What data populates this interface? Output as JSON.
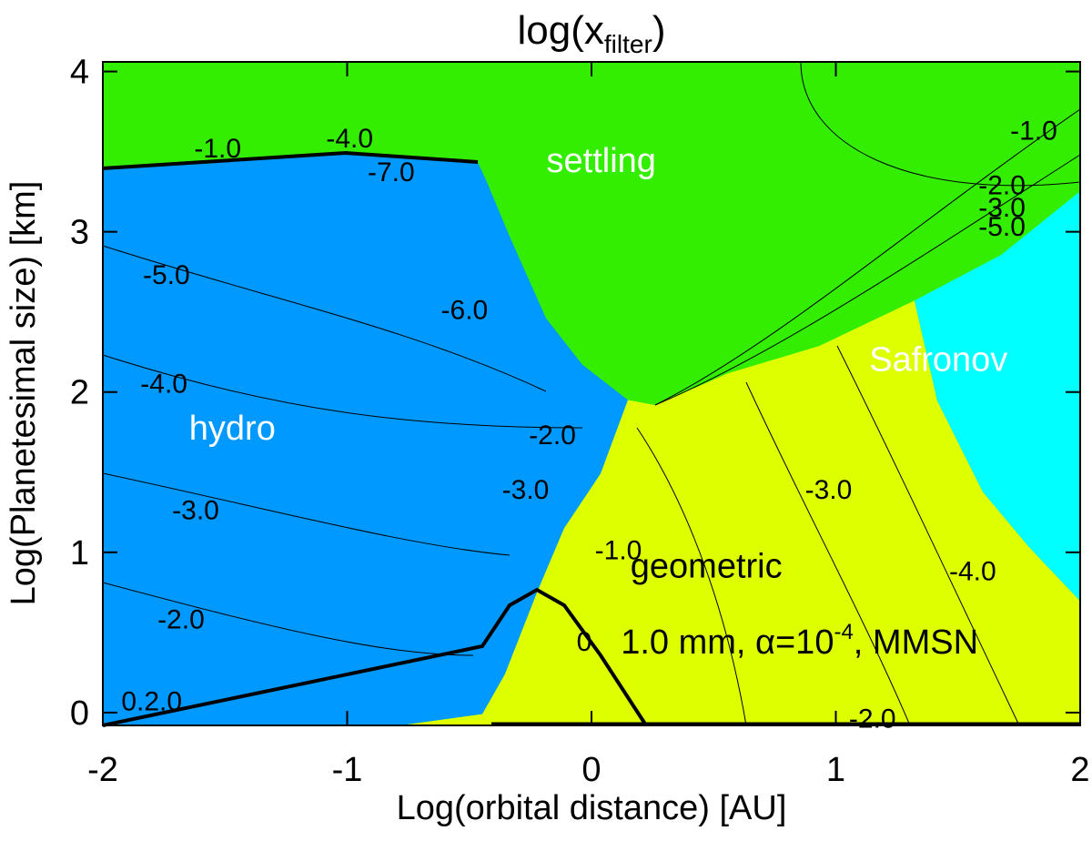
{
  "chart_data": {
    "type": "contour",
    "title": [
      "log(x",
      "filter",
      ")"
    ],
    "x_label": "Log(orbital distance) [AU]",
    "y_label": "Log(Planetesimal size) [km]",
    "xlim": [
      -2,
      2
    ],
    "ylim": [
      -0.08,
      4.06
    ],
    "xticks": [
      -2,
      -1,
      0,
      1,
      2
    ],
    "yticks": [
      0,
      1,
      2,
      3,
      4
    ],
    "regions": [
      {
        "name": "settling",
        "color": "#33ee00",
        "label_x": 0.04,
        "label_y": 3.43
      },
      {
        "name": "hydro",
        "color": "#0099ff",
        "label_x": -1.47,
        "label_y": 1.76,
        "x": [
          -2,
          -1.006,
          -0.466,
          -0.428,
          -0.335,
          -0.186,
          -0.037,
          0.149,
          0.037,
          -0.112,
          -0.223,
          -0.354,
          -0.447,
          -0.782,
          -2
        ],
        "y": [
          3.395,
          3.49,
          3.435,
          3.31,
          2.97,
          2.46,
          2.17,
          1.95,
          1.49,
          1.15,
          0.75,
          0.24,
          -0.01,
          -0.08,
          -0.08
        ]
      },
      {
        "name": "geometric",
        "color": "#ddff00",
        "label_x": 0.47,
        "label_y": 0.9,
        "x": [
          0.149,
          0.261,
          0.559,
          0.931,
          1.322,
          1.415,
          1.601,
          1.788,
          2,
          2,
          -0.782,
          -0.447,
          -0.354,
          -0.223,
          -0.112,
          0.037
        ],
        "y": [
          1.95,
          1.918,
          2.117,
          2.287,
          2.571,
          1.946,
          1.378,
          1.037,
          0.696,
          -0.08,
          -0.08,
          -0.01,
          0.24,
          0.75,
          1.15,
          1.49
        ]
      },
      {
        "name": "Safronov",
        "color": "#00ffff",
        "label_x": 1.42,
        "label_y": 2.19,
        "x": [
          1.322,
          1.676,
          2,
          2,
          1.788,
          1.601,
          1.415
        ],
        "y": [
          2.571,
          2.855,
          3.253,
          0.696,
          1.037,
          1.378,
          1.946
        ]
      }
    ],
    "contour_labels": [
      {
        "text": "-1.0",
        "x": -1.53,
        "y": 3.51
      },
      {
        "text": "-4.0",
        "x": -0.99,
        "y": 3.57
      },
      {
        "text": "-7.0",
        "x": -0.82,
        "y": 3.36
      },
      {
        "text": "-5.0",
        "x": -1.74,
        "y": 2.72
      },
      {
        "text": "-6.0",
        "x": -0.52,
        "y": 2.5
      },
      {
        "text": "-4.0",
        "x": -1.75,
        "y": 2.04
      },
      {
        "text": "-3.0",
        "x": -1.62,
        "y": 1.25
      },
      {
        "text": "-2.0",
        "x": -1.68,
        "y": 0.57
      },
      {
        "text": "-1.0",
        "x": 1.81,
        "y": 3.62
      },
      {
        "text": "-2.0",
        "x": 1.68,
        "y": 3.28
      },
      {
        "text": "-3.0",
        "x": 1.68,
        "y": 3.14
      },
      {
        "text": "-5.0",
        "x": 1.68,
        "y": 3.02
      },
      {
        "text": "-3.0",
        "x": 0.97,
        "y": 1.38
      },
      {
        "text": "-4.0",
        "x": 1.56,
        "y": 0.87
      },
      {
        "text": "-1.0",
        "x": 0.11,
        "y": 1.0
      },
      {
        "text": "0",
        "x": -0.03,
        "y": 0.43
      },
      {
        "text": "-3.0",
        "x": -0.27,
        "y": 1.38
      },
      {
        "text": "-2.0",
        "x": -0.16,
        "y": 1.72
      },
      {
        "text": "0.2.0",
        "x": -1.8,
        "y": 0.06
      },
      {
        "text": "-2.0",
        "x": 1.15,
        "y": -0.05
      }
    ],
    "annotation": [
      "1.0 mm, α=10",
      "-4",
      ", MMSN"
    ],
    "annotation_x": 0.12,
    "annotation_y": 0.37
  }
}
